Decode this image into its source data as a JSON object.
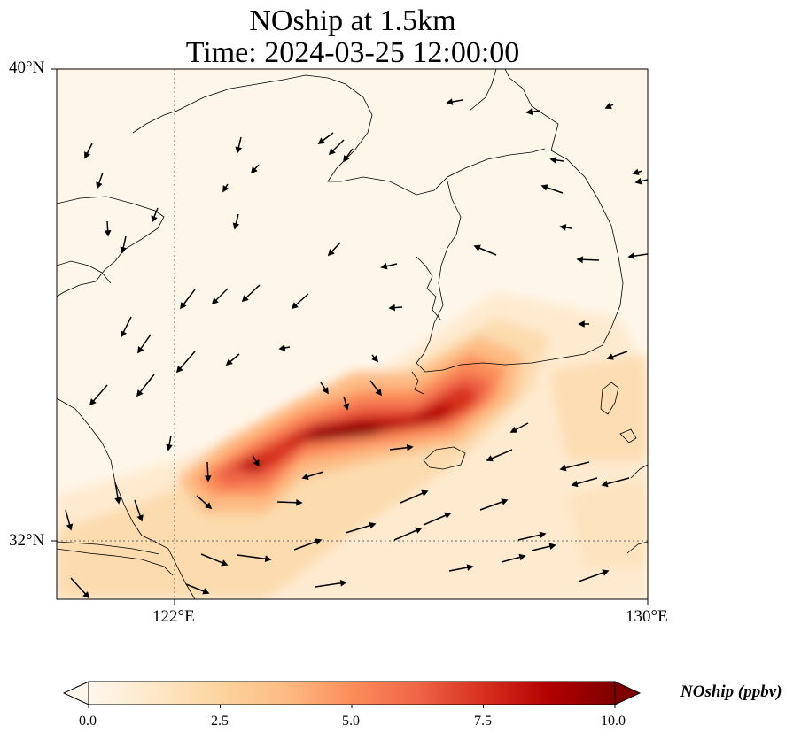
{
  "title": {
    "line1": "NOship at 1.5km",
    "line2": "Time: 2024-03-25 12:00:00"
  },
  "axes": {
    "lat_labels": [
      "40°N",
      "32°N"
    ],
    "lon_labels": [
      "122°E",
      "130°E"
    ],
    "gridlines": "dotted, at 122°E and 32°N",
    "extent": {
      "lon_min": 120,
      "lon_max": 130,
      "lat_min": 31,
      "lat_max": 40
    }
  },
  "colorbar": {
    "label": "NOship (ppbv)",
    "ticks": [
      "0.0",
      "2.5",
      "5.0",
      "7.5",
      "10.0"
    ],
    "min": 0,
    "max": 10,
    "colormap": "OrRd",
    "colors": [
      "#fff7ec",
      "#fee8c8",
      "#fdd49e",
      "#fdbb84",
      "#fc8d59",
      "#ef6548",
      "#d7301f",
      "#b30000",
      "#7f0000"
    ],
    "extend": "both"
  },
  "chart_data": {
    "type": "heatmap",
    "title": "NOship at 1.5km",
    "subtitle": "Time: 2024-03-25 12:00:00",
    "variable": "NOship",
    "units": "ppbv",
    "level": "1.5km",
    "plume_axis": [
      {
        "lon": 122.5,
        "lat": 33.2,
        "value": 6.5
      },
      {
        "lon": 123.2,
        "lat": 33.4,
        "value": 8.5
      },
      {
        "lon": 124.0,
        "lat": 33.9,
        "value": 9.5
      },
      {
        "lon": 124.9,
        "lat": 34.0,
        "value": 9.0
      },
      {
        "lon": 125.8,
        "lat": 34.2,
        "value": 8.0
      },
      {
        "lon": 126.6,
        "lat": 34.6,
        "value": 7.5
      }
    ],
    "wind_vectors": "arrows show wind direction; weak near-surface flow, westerly to southwesterly over southern sea, northeasterly over Yellow Sea"
  }
}
